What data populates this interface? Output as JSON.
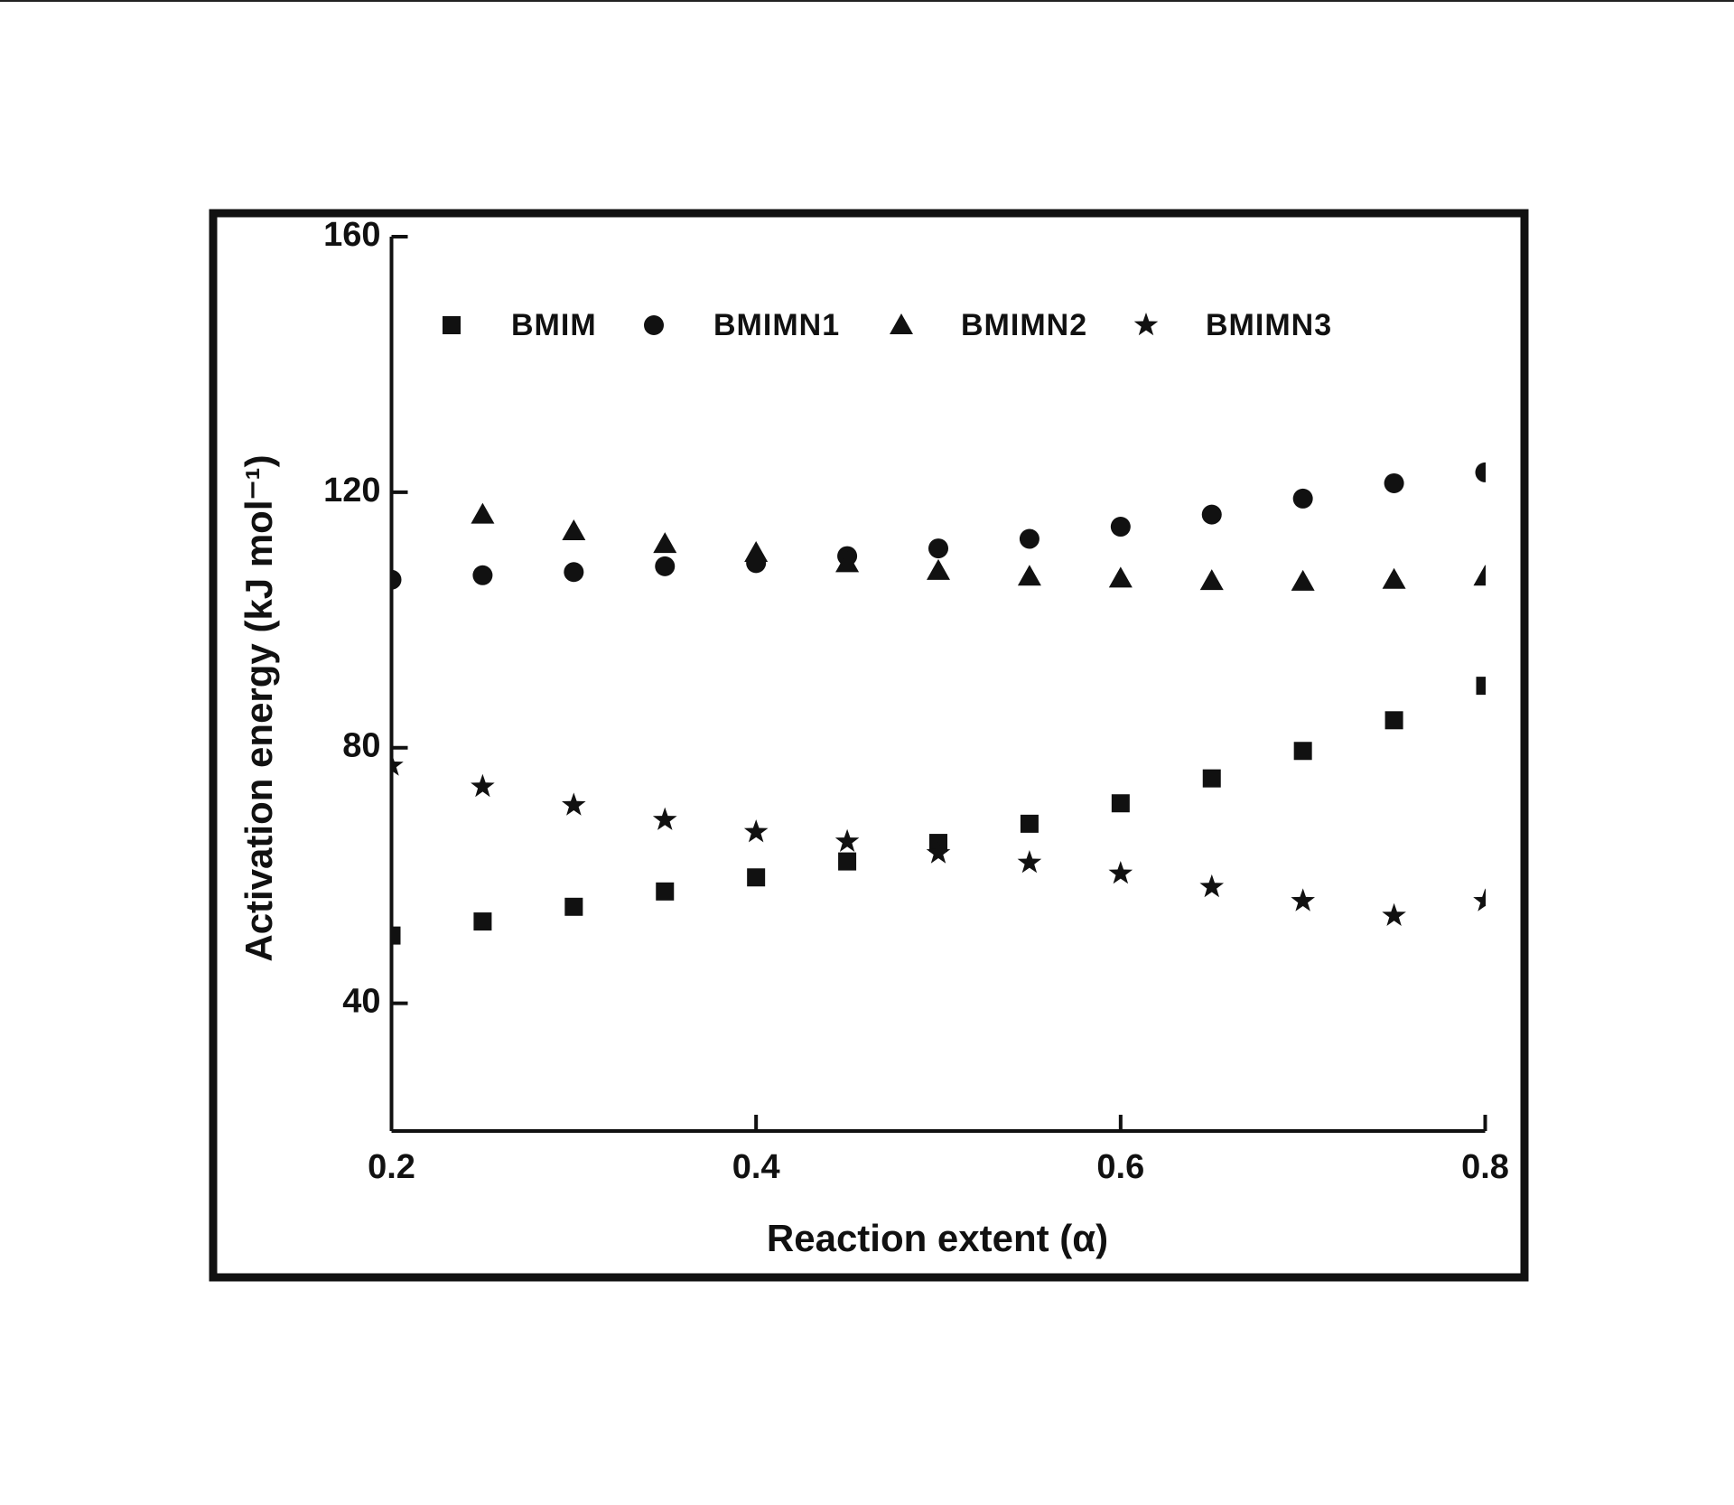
{
  "chart_data": {
    "type": "scatter",
    "x_label": "Reaction extent (α)",
    "y_label": "Activation energy (kJ mol⁻¹)",
    "x": [
      0.2,
      0.25,
      0.3,
      0.35,
      0.4,
      0.45,
      0.5,
      0.55,
      0.6,
      0.65,
      0.7,
      0.75,
      0.8
    ],
    "xlim": [
      0.2,
      0.8
    ],
    "xticks": [
      0.2,
      0.4,
      0.6,
      0.8
    ],
    "ylim": [
      20,
      160
    ],
    "yticks": [
      40,
      80,
      120,
      160
    ],
    "series": [
      {
        "name": "BMIM",
        "color": "#111111",
        "marker": "square",
        "values": [
          50.6,
          52.8,
          55.1,
          57.5,
          59.7,
          62.2,
          65.1,
          68.1,
          71.3,
          75.2,
          79.5,
          84.3,
          89.7
        ]
      },
      {
        "name": "BMIMN1",
        "color": "#111111",
        "marker": "circle",
        "values": [
          106.3,
          107.0,
          107.5,
          108.4,
          108.9,
          110.0,
          111.2,
          112.7,
          114.6,
          116.5,
          119.0,
          121.4,
          123.1
        ]
      },
      {
        "name": "BMIMN2",
        "color": "#111111",
        "marker": "triangle",
        "values": [
          null,
          116.5,
          113.9,
          111.9,
          110.5,
          108.9,
          107.7,
          106.8,
          106.5,
          106.1,
          106.0,
          106.3,
          106.8
        ]
      },
      {
        "name": "BMIMN3",
        "color": "#111111",
        "marker": "star",
        "values": [
          77.2,
          73.9,
          71.0,
          68.7,
          66.8,
          65.3,
          63.5,
          62.0,
          60.3,
          58.2,
          56.0,
          53.7,
          56.0
        ]
      }
    ]
  }
}
